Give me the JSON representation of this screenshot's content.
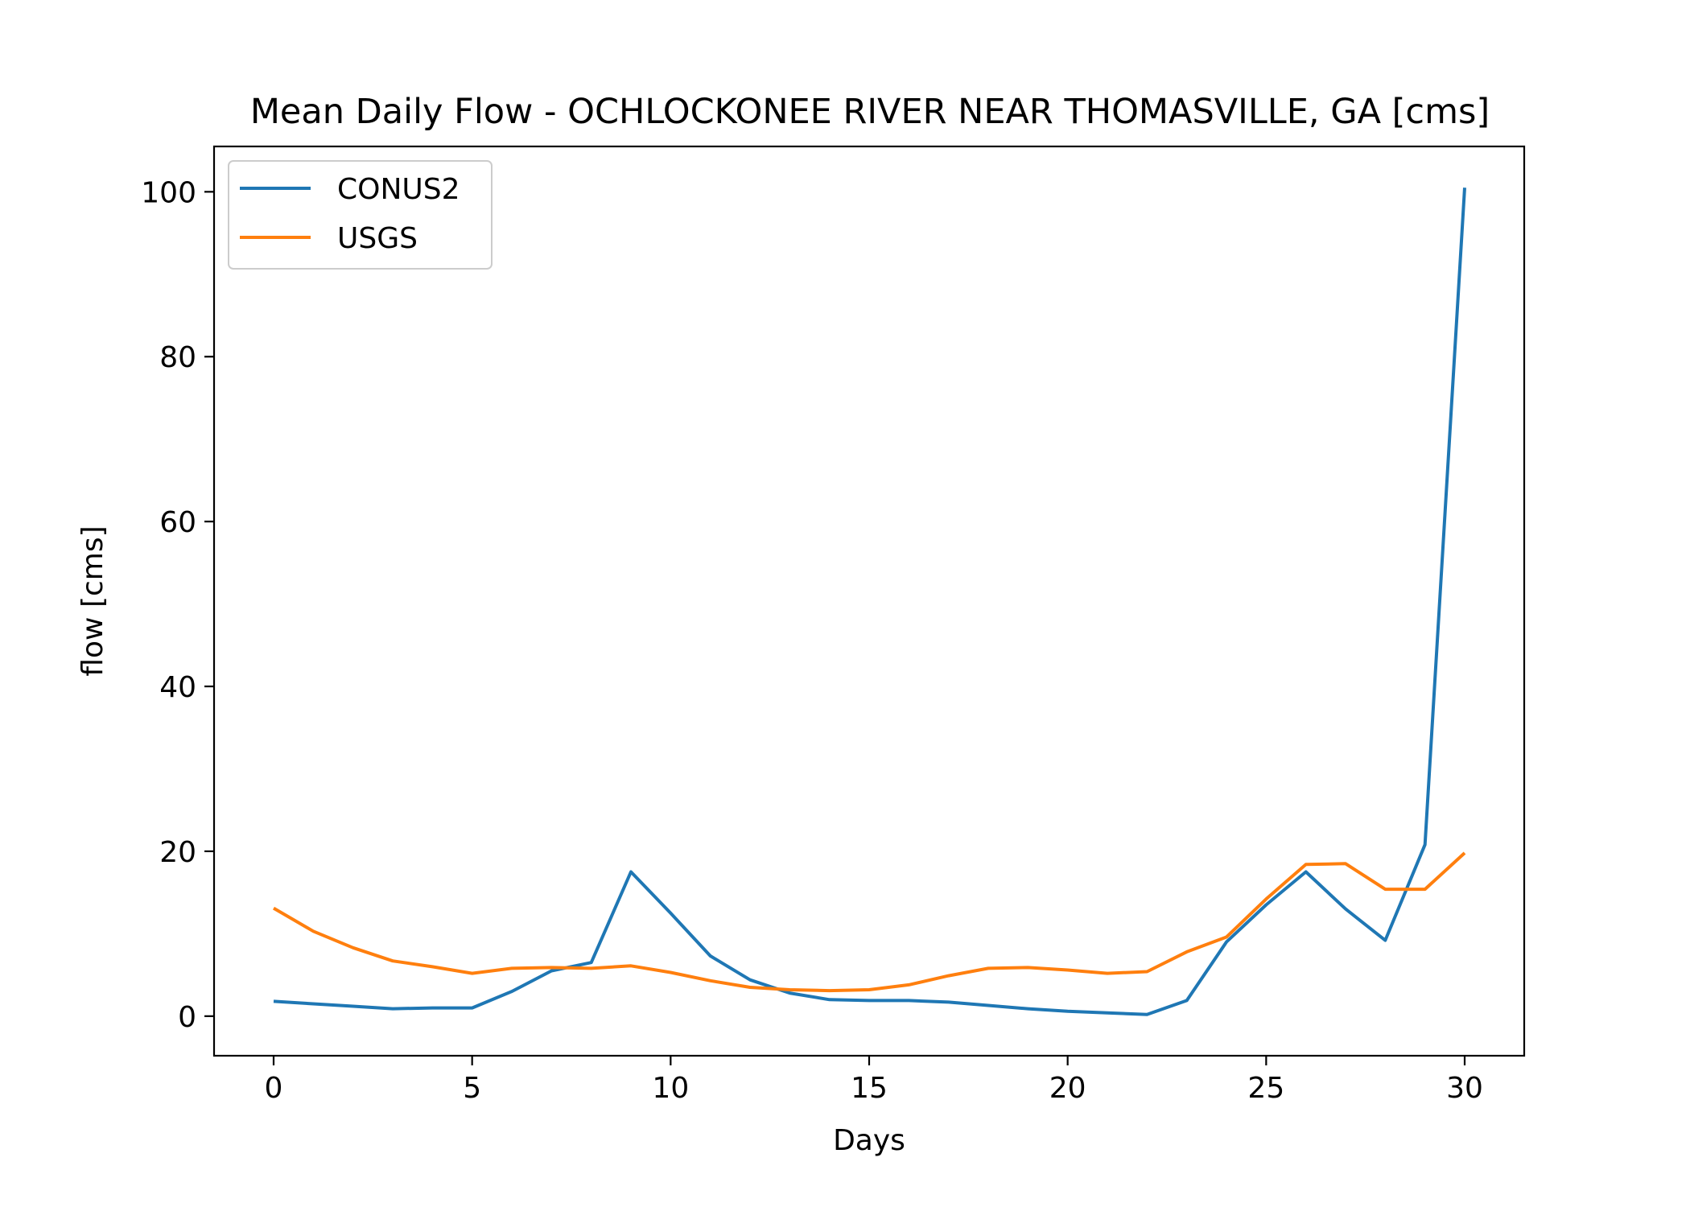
{
  "chart_data": {
    "type": "line",
    "title": "Mean Daily Flow - OCHLOCKONEE RIVER NEAR THOMASVILLE, GA [cms]",
    "xlabel": "Days",
    "ylabel": "flow [cms]",
    "xlim": [
      -1.5,
      31.5
    ],
    "ylim": [
      -4.8,
      105.5
    ],
    "xticks": [
      0,
      5,
      10,
      15,
      20,
      25,
      30
    ],
    "yticks": [
      0,
      20,
      40,
      60,
      80,
      100
    ],
    "grid": false,
    "legend_position": "upper-left",
    "x": [
      0,
      1,
      2,
      3,
      4,
      5,
      6,
      7,
      8,
      9,
      10,
      11,
      12,
      13,
      14,
      15,
      16,
      17,
      18,
      19,
      20,
      21,
      22,
      23,
      24,
      25,
      26,
      27,
      28,
      29,
      30
    ],
    "series": [
      {
        "name": "CONUS2",
        "color": "#1f77b4",
        "values": [
          1.8,
          1.5,
          1.2,
          0.9,
          1.0,
          1.0,
          3.0,
          5.5,
          6.5,
          17.5,
          12.5,
          7.3,
          4.4,
          2.8,
          2.0,
          1.9,
          1.9,
          1.7,
          1.3,
          0.9,
          0.6,
          0.4,
          0.2,
          1.9,
          9.0,
          13.5,
          17.5,
          13.0,
          9.2,
          20.8,
          100.5
        ]
      },
      {
        "name": "USGS",
        "color": "#ff7f0e",
        "values": [
          13.1,
          10.3,
          8.3,
          6.7,
          6.0,
          5.2,
          5.8,
          5.9,
          5.8,
          6.1,
          5.3,
          4.3,
          3.5,
          3.2,
          3.1,
          3.2,
          3.8,
          4.9,
          5.8,
          5.9,
          5.6,
          5.2,
          5.4,
          7.8,
          9.6,
          14.2,
          18.4,
          18.5,
          15.4,
          15.4,
          19.8
        ]
      }
    ]
  }
}
